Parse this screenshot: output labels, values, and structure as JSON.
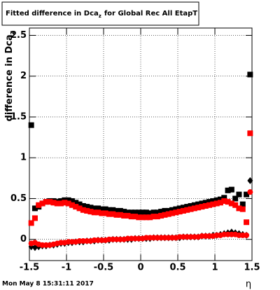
{
  "chart_data": {
    "type": "scatter",
    "title_main": "Fitted difference in Dca",
    "title_sub": "z",
    "title_rest": "for Global Rec All EtapT",
    "y_label_main": "difference in Dca",
    "y_label_sub": "z",
    "x_label": "η",
    "timestamp": "Mon May  8 15:31:11 2017",
    "xlim": [
      -1.5,
      1.5
    ],
    "ylim": [
      -0.26,
      2.59
    ],
    "xticks": [
      -1.5,
      -1,
      -0.5,
      0,
      0.5,
      1,
      1.5
    ],
    "yticks": [
      0,
      0.5,
      1,
      1.5,
      2,
      2.5
    ],
    "grid": true,
    "x": [
      -1.475,
      -1.425,
      -1.375,
      -1.325,
      -1.275,
      -1.225,
      -1.175,
      -1.125,
      -1.075,
      -1.025,
      -0.975,
      -0.925,
      -0.875,
      -0.825,
      -0.775,
      -0.725,
      -0.675,
      -0.625,
      -0.575,
      -0.525,
      -0.475,
      -0.425,
      -0.375,
      -0.325,
      -0.275,
      -0.225,
      -0.175,
      -0.125,
      -0.075,
      -0.025,
      0.025,
      0.075,
      0.125,
      0.175,
      0.225,
      0.275,
      0.325,
      0.375,
      0.425,
      0.475,
      0.525,
      0.575,
      0.625,
      0.675,
      0.725,
      0.775,
      0.825,
      0.875,
      0.925,
      0.975,
      1.025,
      1.075,
      1.125,
      1.175,
      1.225,
      1.275,
      1.325,
      1.375,
      1.425,
      1.475
    ],
    "series": [
      {
        "color": "#000000",
        "marker": "square",
        "values": [
          1.4,
          0.38,
          0.4,
          0.44,
          0.46,
          0.47,
          0.47,
          0.46,
          0.47,
          0.48,
          0.48,
          0.47,
          0.45,
          0.43,
          0.41,
          0.4,
          0.39,
          0.38,
          0.38,
          0.37,
          0.37,
          0.36,
          0.36,
          0.35,
          0.35,
          0.34,
          0.33,
          0.33,
          0.33,
          0.33,
          0.33,
          0.33,
          0.32,
          0.33,
          0.33,
          0.34,
          0.35,
          0.35,
          0.36,
          0.37,
          0.38,
          0.39,
          0.4,
          0.41,
          0.42,
          0.43,
          0.44,
          0.45,
          0.46,
          0.47,
          0.48,
          0.49,
          0.51,
          0.6,
          0.61,
          0.5,
          0.55,
          0.43,
          0.55,
          2.02
        ]
      },
      {
        "color": "#ff0000",
        "marker": "square",
        "values": [
          0.2,
          0.26,
          0.42,
          0.44,
          0.46,
          0.46,
          0.45,
          0.44,
          0.44,
          0.45,
          0.44,
          0.42,
          0.4,
          0.38,
          0.36,
          0.35,
          0.34,
          0.33,
          0.33,
          0.32,
          0.32,
          0.31,
          0.31,
          0.3,
          0.3,
          0.29,
          0.29,
          0.28,
          0.28,
          0.27,
          0.27,
          0.27,
          0.27,
          0.28,
          0.28,
          0.29,
          0.3,
          0.31,
          0.32,
          0.33,
          0.34,
          0.35,
          0.36,
          0.37,
          0.38,
          0.39,
          0.4,
          0.41,
          0.42,
          0.43,
          0.44,
          0.45,
          0.47,
          0.46,
          0.44,
          0.42,
          0.38,
          0.37,
          0.21,
          1.3
        ]
      },
      {
        "color": "#000000",
        "marker": "diamond",
        "values": [
          -0.09,
          -0.1,
          -0.09,
          -0.08,
          -0.08,
          -0.07,
          -0.07,
          -0.06,
          -0.05,
          -0.05,
          -0.04,
          -0.04,
          -0.03,
          -0.03,
          -0.03,
          -0.02,
          -0.02,
          -0.02,
          -0.01,
          -0.01,
          -0.01,
          -0.01,
          0,
          0,
          0,
          0,
          0,
          0,
          0.01,
          0.01,
          0.01,
          0.01,
          0.01,
          0.02,
          0.02,
          0.02,
          0.02,
          0.02,
          0.02,
          0.02,
          0.02,
          0.03,
          0.03,
          0.03,
          0.03,
          0.03,
          0.04,
          0.04,
          0.04,
          0.05,
          0.05,
          0.06,
          0.07,
          0.08,
          0.09,
          0.08,
          0.07,
          0.06,
          0.05,
          0.72
        ]
      },
      {
        "color": "#ff0000",
        "marker": "circle",
        "values": [
          -0.05,
          -0.04,
          -0.06,
          -0.07,
          -0.07,
          -0.07,
          -0.06,
          -0.05,
          -0.04,
          -0.04,
          -0.03,
          -0.03,
          -0.03,
          -0.02,
          -0.02,
          -0.02,
          -0.02,
          -0.01,
          -0.01,
          -0.01,
          -0.01,
          0,
          0,
          0,
          0,
          0,
          0.01,
          0.01,
          0.01,
          0.01,
          0.01,
          0.02,
          0.02,
          0.02,
          0.02,
          0.02,
          0.02,
          0.02,
          0.02,
          0.02,
          0.03,
          0.03,
          0.03,
          0.03,
          0.03,
          0.03,
          0.04,
          0.04,
          0.04,
          0.04,
          0.05,
          0.05,
          0.06,
          0.06,
          0.06,
          0.06,
          0.05,
          0.05,
          0.05,
          0.58
        ]
      }
    ]
  }
}
